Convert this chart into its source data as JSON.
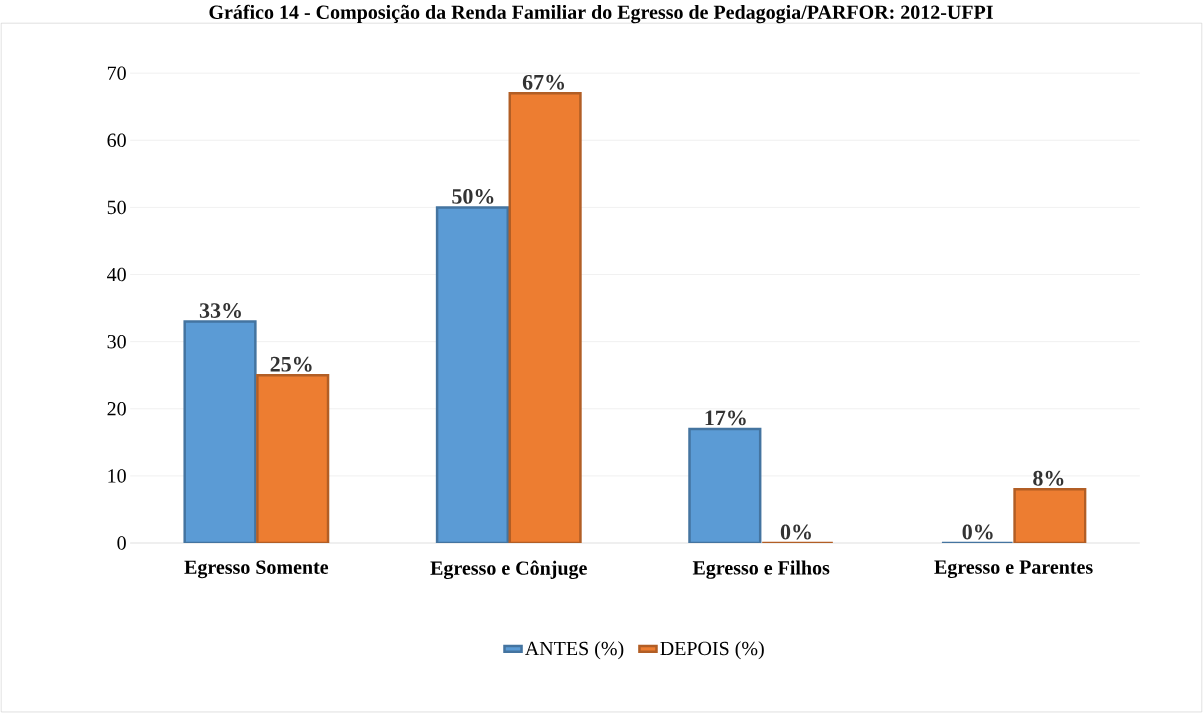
{
  "chart_data": {
    "type": "bar",
    "title": "Gráfico 14 - Composição da Renda Familiar do Egresso de Pedagogia/PARFOR: 2012-UFPI",
    "categories": [
      "Egresso Somente",
      "Egresso e Cônjuge",
      "Egresso e Filhos",
      "Egresso e Parentes"
    ],
    "series": [
      {
        "name": "ANTES (%)",
        "color": "#5b9bd5",
        "values": [
          33,
          50,
          17,
          0
        ],
        "value_labels": [
          "33%",
          "50%",
          "17%",
          "0%"
        ]
      },
      {
        "name": "DEPOIS (%)",
        "color": "#ed7d31",
        "values": [
          25,
          67,
          0,
          8
        ],
        "value_labels": [
          "25%",
          "67%",
          "0%",
          "8%"
        ]
      }
    ],
    "ylim": [
      0,
      70
    ],
    "yticks": [
      0,
      10,
      20,
      30,
      40,
      50,
      60,
      70
    ],
    "grid": "y",
    "legend": "bottom"
  }
}
